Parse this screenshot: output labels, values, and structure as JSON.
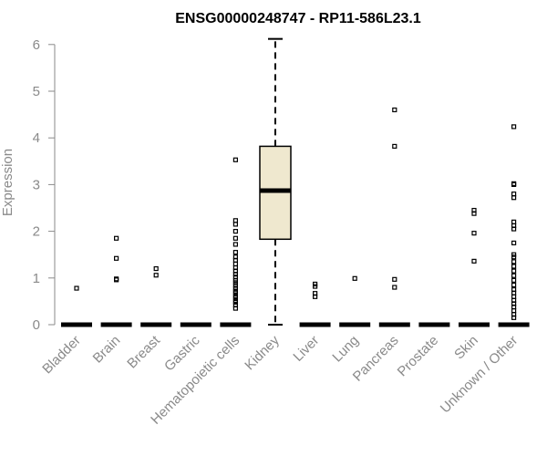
{
  "chart_data": {
    "type": "box",
    "title": "ENSG00000248747 - RP11-586L23.1",
    "xlabel": "",
    "ylabel": "Expression",
    "ylim": [
      0,
      6.2
    ],
    "yticks": [
      0,
      1,
      2,
      3,
      4,
      5,
      6
    ],
    "grid": false,
    "colors": {
      "box_fill": "#efe8cf",
      "box_stroke": "#000000",
      "axis": "#8a8a8a"
    },
    "categories": [
      "Bladder",
      "Brain",
      "Breast",
      "Gastric",
      "Hematopoietic cells",
      "Kidney",
      "Liver",
      "Lung",
      "Pancreas",
      "Prostate",
      "Skin",
      "Unknown / Other"
    ],
    "boxes": [
      {
        "category": "Bladder",
        "min": 0,
        "q1": 0,
        "median": 0,
        "q3": 0,
        "max": 0,
        "outliers": [
          0.78
        ]
      },
      {
        "category": "Brain",
        "min": 0,
        "q1": 0,
        "median": 0,
        "q3": 0,
        "max": 0,
        "outliers": [
          0.96,
          0.98,
          1.42,
          1.85
        ]
      },
      {
        "category": "Breast",
        "min": 0,
        "q1": 0,
        "median": 0,
        "q3": 0,
        "max": 0,
        "outliers": [
          1.06,
          1.2
        ]
      },
      {
        "category": "Gastric",
        "min": 0,
        "q1": 0,
        "median": 0,
        "q3": 0,
        "max": 0,
        "outliers": []
      },
      {
        "category": "Hematopoietic cells",
        "min": 0,
        "q1": 0,
        "median": 0,
        "q3": 0,
        "max": 0,
        "outliers": [
          0.35,
          0.42,
          0.48,
          0.52,
          0.58,
          0.62,
          0.68,
          0.72,
          0.78,
          0.84,
          0.9,
          0.95,
          1.02,
          1.08,
          1.15,
          1.22,
          1.3,
          1.38,
          1.45,
          1.55,
          1.72,
          1.85,
          2.0,
          2.15,
          2.23,
          3.53
        ]
      },
      {
        "category": "Kidney",
        "min": 0,
        "q1": 1.83,
        "median": 2.87,
        "q3": 3.82,
        "max": 6.12,
        "outliers": []
      },
      {
        "category": "Liver",
        "min": 0,
        "q1": 0,
        "median": 0,
        "q3": 0,
        "max": 0,
        "outliers": [
          0.6,
          0.67,
          0.82,
          0.87
        ]
      },
      {
        "category": "Lung",
        "min": 0,
        "q1": 0,
        "median": 0,
        "q3": 0,
        "max": 0,
        "outliers": [
          0.99
        ]
      },
      {
        "category": "Pancreas",
        "min": 0,
        "q1": 0,
        "median": 0,
        "q3": 0,
        "max": 0,
        "outliers": [
          0.8,
          0.97,
          3.82,
          4.6
        ]
      },
      {
        "category": "Prostate",
        "min": 0,
        "q1": 0,
        "median": 0,
        "q3": 0,
        "max": 0,
        "outliers": []
      },
      {
        "category": "Skin",
        "min": 0,
        "q1": 0,
        "median": 0,
        "q3": 0,
        "max": 0,
        "outliers": [
          1.36,
          1.96,
          2.38,
          2.45
        ]
      },
      {
        "category": "Unknown / Other",
        "min": 0,
        "q1": 0,
        "median": 0,
        "q3": 0,
        "max": 0,
        "outliers": [
          0.15,
          0.22,
          0.3,
          0.38,
          0.45,
          0.52,
          0.6,
          0.68,
          0.75,
          0.85,
          0.95,
          1.05,
          1.15,
          1.25,
          1.35,
          1.45,
          1.5,
          1.75,
          2.05,
          2.12,
          2.2,
          2.72,
          2.8,
          3.0,
          3.02,
          4.24
        ]
      }
    ]
  }
}
